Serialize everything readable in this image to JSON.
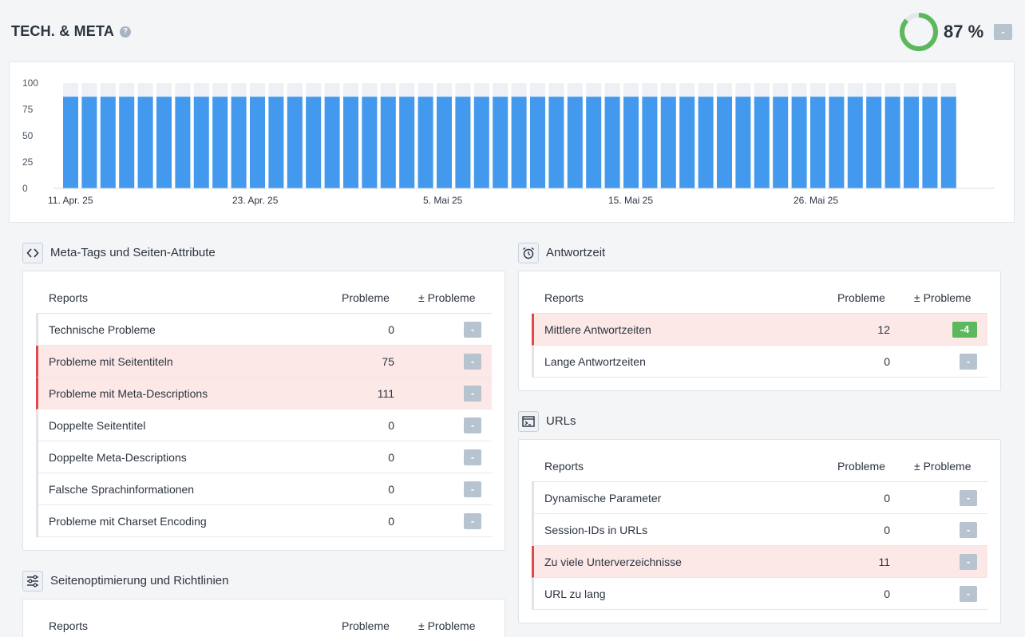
{
  "header": {
    "title": "TECH. & META",
    "help_icon": "?",
    "score": "87 %",
    "score_fraction": 0.87,
    "score_delta": "-",
    "colors": {
      "score_ring": "#5cb85c",
      "score_track": "#e3e7eb"
    }
  },
  "chart_data": {
    "type": "bar",
    "y_ticks": [
      "100",
      "75",
      "50",
      "25",
      "0"
    ],
    "ylim": [
      0,
      100
    ],
    "x_labels": [
      "11. Apr. 25",
      "23. Apr. 25",
      "5. Mai 25",
      "15. Mai 25",
      "26. Mai 25"
    ],
    "values": [
      87,
      87,
      87,
      87,
      87,
      87,
      87,
      87,
      87,
      87,
      87,
      87,
      87,
      87,
      87,
      87,
      87,
      87,
      87,
      87,
      87,
      87,
      87,
      87,
      87,
      87,
      87,
      87,
      87,
      87,
      87,
      87,
      87,
      87,
      87,
      87,
      87,
      87,
      87,
      87,
      87,
      87,
      87,
      87,
      87,
      87,
      87,
      87
    ],
    "max_value": 100,
    "colors": {
      "bar": "#4299ee",
      "background_bar": "#edf0f4"
    }
  },
  "sections": {
    "meta": {
      "title": "Meta-Tags und Seiten-Attribute",
      "icon": "code-icon",
      "col_reports": "Reports",
      "col_problems": "Probleme",
      "col_delta": "± Probleme",
      "rows": [
        {
          "label": "Technische Probleme",
          "value": "0",
          "delta": "-",
          "highlight": false
        },
        {
          "label": "Probleme mit Seitentiteln",
          "value": "75",
          "delta": "-",
          "highlight": true
        },
        {
          "label": "Probleme mit Meta-Descriptions",
          "value": "111",
          "delta": "-",
          "highlight": true
        },
        {
          "label": "Doppelte Seitentitel",
          "value": "0",
          "delta": "-",
          "highlight": false
        },
        {
          "label": "Doppelte Meta-Descriptions",
          "value": "0",
          "delta": "-",
          "highlight": false
        },
        {
          "label": "Falsche Sprachinformationen",
          "value": "0",
          "delta": "-",
          "highlight": false
        },
        {
          "label": "Probleme mit Charset Encoding",
          "value": "0",
          "delta": "-",
          "highlight": false
        }
      ]
    },
    "optimization": {
      "title": "Seitenoptimierung und Richtlinien",
      "icon": "sliders-icon",
      "col_reports": "Reports",
      "col_problems": "Probleme",
      "col_delta": "± Probleme"
    },
    "response": {
      "title": "Antwortzeit",
      "icon": "alarm-clock-icon",
      "col_reports": "Reports",
      "col_problems": "Probleme",
      "col_delta": "± Probleme",
      "rows": [
        {
          "label": "Mittlere Antwortzeiten",
          "value": "12",
          "delta": "-4",
          "highlight": true
        },
        {
          "label": "Lange Antwortzeiten",
          "value": "0",
          "delta": "-",
          "highlight": false
        }
      ]
    },
    "urls": {
      "title": "URLs",
      "icon": "browser-window-icon",
      "col_reports": "Reports",
      "col_problems": "Probleme",
      "col_delta": "± Probleme",
      "rows": [
        {
          "label": "Dynamische Parameter",
          "value": "0",
          "delta": "-",
          "highlight": false
        },
        {
          "label": "Session-IDs in URLs",
          "value": "0",
          "delta": "-",
          "highlight": false
        },
        {
          "label": "Zu viele Unterverzeichnisse",
          "value": "11",
          "delta": "-",
          "highlight": true
        },
        {
          "label": "URL zu lang",
          "value": "0",
          "delta": "-",
          "highlight": false
        }
      ]
    }
  }
}
